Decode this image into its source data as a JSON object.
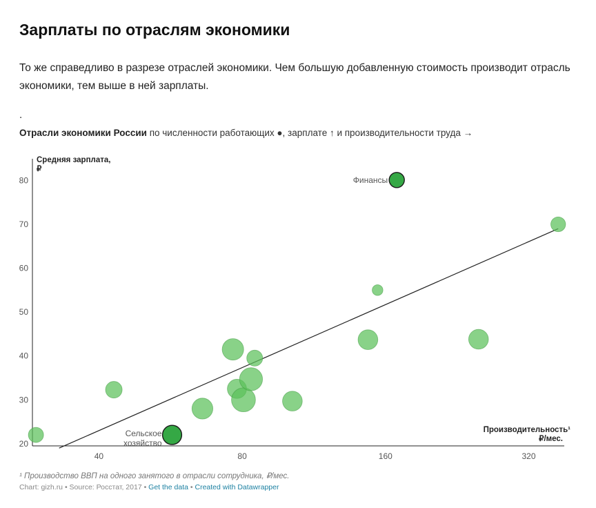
{
  "page": {
    "title": "Зарплаты по отраслям экономики",
    "intro": "То же справедливо в разрезе отраслей экономики. Чем большую добавленную стоимость производит отрасль экономики, тем выше в ней зарплаты.",
    "dot": "."
  },
  "chart_title": {
    "bold": "Отрасли экономики России",
    "rest": " по численности работающих ●, зарплате ↑ и производительности труда →"
  },
  "chart_data": {
    "type": "scatter",
    "title": "Отрасли экономики России по численности работающих ●, зарплате ↑ и производительности труда →",
    "ylabel": "Средняя зарплата, ₽",
    "xlabel": "Производительность¹ ₽/мес.",
    "x_scale": "log",
    "x_ticks": [
      40,
      80,
      160,
      320
    ],
    "y_ticks": [
      20,
      30,
      40,
      50,
      60,
      70,
      80
    ],
    "xlim": [
      29,
      380
    ],
    "ylim": [
      19.5,
      84
    ],
    "trendline": {
      "x": [
        33,
        369
      ],
      "y": [
        19,
        69
      ]
    },
    "colors": {
      "point": "#5cc05a",
      "highlight": "#35a845",
      "trend": "#222222"
    },
    "points": [
      {
        "x": 29.5,
        "y": 22,
        "size": 1.0
      },
      {
        "x": 43.0,
        "y": 32.3,
        "size": 1.2
      },
      {
        "x": 57.0,
        "y": 22,
        "size": 1.6,
        "highlight": true,
        "label": "Сельское хозяйство"
      },
      {
        "x": 66.0,
        "y": 28,
        "size": 1.9
      },
      {
        "x": 76.5,
        "y": 41.5,
        "size": 2.0
      },
      {
        "x": 78.0,
        "y": 32.5,
        "size": 1.6
      },
      {
        "x": 80.5,
        "y": 30,
        "size": 2.5
      },
      {
        "x": 83.5,
        "y": 34.7,
        "size": 2.3
      },
      {
        "x": 85.0,
        "y": 39.5,
        "size": 1.1
      },
      {
        "x": 102.0,
        "y": 29.7,
        "size": 1.7
      },
      {
        "x": 147.0,
        "y": 43.7,
        "size": 1.7
      },
      {
        "x": 154.0,
        "y": 55,
        "size": 0.5
      },
      {
        "x": 169.0,
        "y": 80.1,
        "size": 1.0,
        "highlight": true,
        "label": "Финансы"
      },
      {
        "x": 251.0,
        "y": 43.8,
        "size": 1.7
      },
      {
        "x": 369.0,
        "y": 70,
        "size": 0.95
      }
    ]
  },
  "axis": {
    "y_title_line1": "Средняя зарплата,",
    "y_title_line2": "₽",
    "x_title_line1": "Производительность¹",
    "x_title_line2": "₽/мес."
  },
  "footnote": "¹ Производство ВВП на одного занятого в отрасли сотрудника, ₽/мес.",
  "credits": {
    "source": "Chart: gizh.ru • Source: Росстат, 2017 • ",
    "get_data": "Get the data",
    "sep": " • ",
    "created": "Created with Datawrapper"
  }
}
